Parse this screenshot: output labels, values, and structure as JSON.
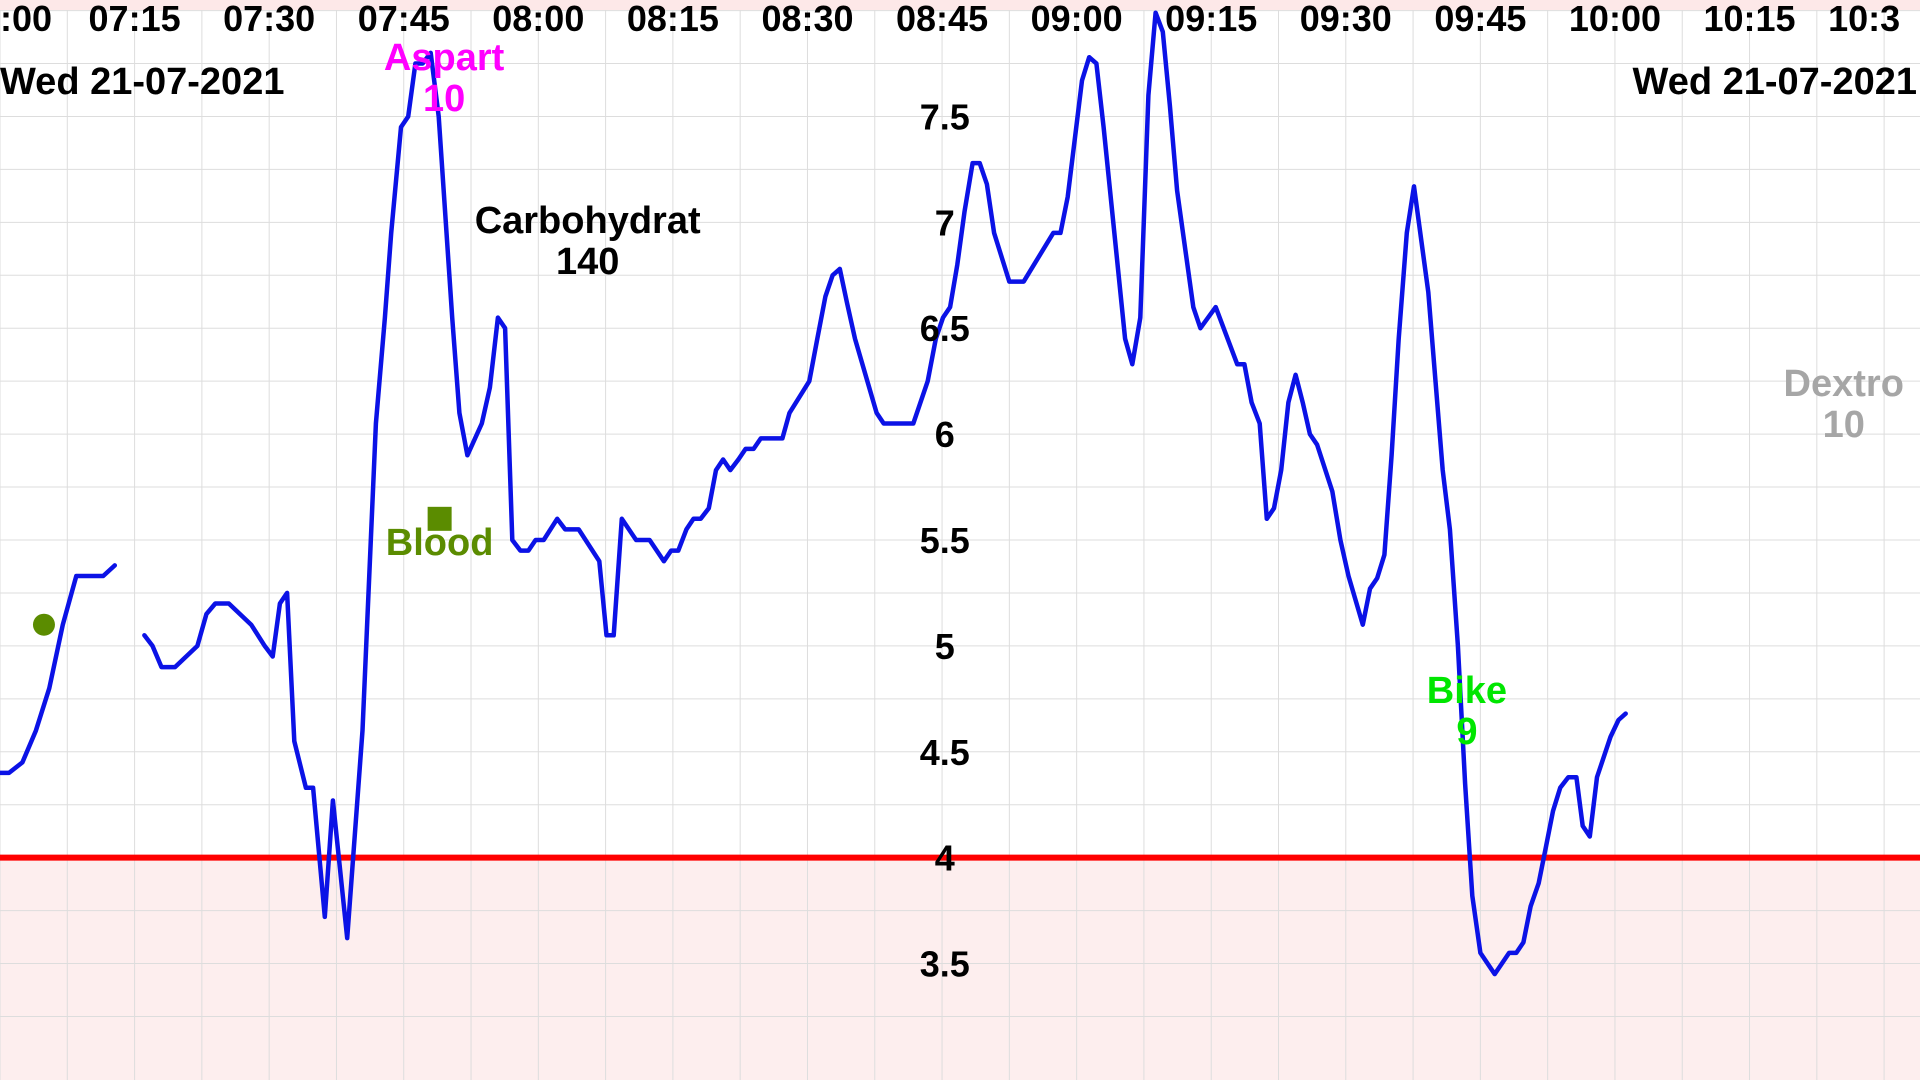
{
  "chart_data": {
    "type": "line",
    "date_left": "Wed 21-07-2021",
    "date_right": "Wed 21-07-2021",
    "x_ticks": [
      ":00",
      "07:15",
      "07:30",
      "07:45",
      "08:00",
      "08:15",
      "08:30",
      "08:45",
      "09:00",
      "09:15",
      "09:30",
      "09:45",
      "10:00",
      "10:15",
      "10:3"
    ],
    "x_tick_minutes": [
      420,
      435,
      450,
      465,
      480,
      495,
      510,
      525,
      540,
      555,
      570,
      585,
      600,
      615,
      630
    ],
    "x_range_minutes": [
      420,
      634
    ],
    "y_ticks": [
      3.5,
      4,
      4.5,
      5,
      5.5,
      6,
      6.5,
      7,
      7.5
    ],
    "y_tick_labels": [
      "3.5",
      "4",
      "4.5",
      "5",
      "5.5",
      "6",
      "6.5",
      "7",
      "7.5"
    ],
    "ylim": [
      2.95,
      8.05
    ],
    "grid": true,
    "low_threshold": 4,
    "colors": {
      "series": "#0b12e6",
      "threshold": "#ff0000",
      "low_region": "#fdeeee",
      "grid": "#dddddd",
      "aspart": "#ff00ff",
      "carbohydrat": "#000000",
      "blood": "#5b8c00",
      "bike": "#00e600",
      "dextro": "#a6a6a6",
      "top_band": "#fde8e8"
    },
    "series": [
      {
        "segments": [
          [
            [
              420,
              4.4
            ],
            [
              421,
              4.4
            ],
            [
              422.5,
              4.45
            ],
            [
              424,
              4.6
            ],
            [
              425.5,
              4.8
            ],
            [
              427,
              5.1
            ],
            [
              428.5,
              5.33
            ],
            [
              430,
              5.33
            ],
            [
              431.5,
              5.33
            ],
            [
              432.8,
              5.38
            ]
          ],
          [
            [
              436.1,
              5.05
            ],
            [
              437,
              5.0
            ],
            [
              438,
              4.9
            ],
            [
              439.5,
              4.9
            ],
            [
              442,
              5.0
            ],
            [
              443,
              5.15
            ],
            [
              444,
              5.2
            ],
            [
              445.5,
              5.2
            ],
            [
              448,
              5.1
            ],
            [
              449.5,
              5.0
            ],
            [
              450.4,
              4.95
            ],
            [
              451.2,
              5.2
            ],
            [
              452,
              5.25
            ],
            [
              452.8,
              4.55
            ],
            [
              454.1,
              4.33
            ],
            [
              454.9,
              4.33
            ],
            [
              456.2,
              3.72
            ],
            [
              457.1,
              4.27
            ],
            [
              458.7,
              3.62
            ],
            [
              460.4,
              4.6
            ],
            [
              461.9,
              6.05
            ],
            [
              462.9,
              6.55
            ],
            [
              463.6,
              6.95
            ],
            [
              464.7,
              7.45
            ],
            [
              465.5,
              7.5
            ],
            [
              466.3,
              7.75
            ],
            [
              467.1,
              7.75
            ],
            [
              468,
              7.8
            ],
            [
              468.9,
              7.5
            ],
            [
              470.4,
              6.55
            ],
            [
              471.2,
              6.1
            ],
            [
              472.1,
              5.9
            ],
            [
              473.7,
              6.05
            ],
            [
              474.6,
              6.22
            ],
            [
              475.5,
              6.55
            ],
            [
              476.3,
              6.5
            ],
            [
              477.1,
              5.5
            ],
            [
              478,
              5.45
            ],
            [
              478.9,
              5.45
            ],
            [
              479.7,
              5.5
            ],
            [
              480.6,
              5.5
            ],
            [
              482.1,
              5.6
            ],
            [
              483,
              5.55
            ],
            [
              484.5,
              5.55
            ],
            [
              486.8,
              5.4
            ],
            [
              487.6,
              5.05
            ],
            [
              488.4,
              5.05
            ],
            [
              489.3,
              5.6
            ],
            [
              490.9,
              5.5
            ],
            [
              492.4,
              5.5
            ],
            [
              494,
              5.4
            ],
            [
              494.8,
              5.45
            ],
            [
              495.6,
              5.45
            ],
            [
              496.5,
              5.55
            ],
            [
              497.3,
              5.6
            ],
            [
              498.1,
              5.6
            ],
            [
              499,
              5.65
            ],
            [
              499.8,
              5.83
            ],
            [
              500.6,
              5.88
            ],
            [
              501.4,
              5.83
            ],
            [
              502.3,
              5.88
            ],
            [
              503.1,
              5.93
            ],
            [
              504,
              5.93
            ],
            [
              504.8,
              5.98
            ],
            [
              507.2,
              5.98
            ],
            [
              508,
              6.1
            ],
            [
              510.2,
              6.25
            ],
            [
              511.1,
              6.45
            ],
            [
              512,
              6.65
            ],
            [
              512.8,
              6.75
            ],
            [
              513.6,
              6.78
            ],
            [
              514.4,
              6.62
            ],
            [
              515.3,
              6.45
            ],
            [
              517.7,
              6.1
            ],
            [
              518.5,
              6.05
            ],
            [
              521.8,
              6.05
            ],
            [
              523.4,
              6.25
            ],
            [
              524.3,
              6.45
            ],
            [
              525.1,
              6.55
            ],
            [
              525.9,
              6.6
            ],
            [
              526.7,
              6.8
            ],
            [
              527.5,
              7.05
            ],
            [
              528.4,
              7.28
            ],
            [
              529.2,
              7.28
            ],
            [
              530,
              7.18
            ],
            [
              530.8,
              6.95
            ],
            [
              532.5,
              6.72
            ],
            [
              534.1,
              6.72
            ],
            [
              537.4,
              6.95
            ],
            [
              538.2,
              6.95
            ],
            [
              539,
              7.12
            ],
            [
              540.6,
              7.67
            ],
            [
              541.4,
              7.78
            ],
            [
              542.2,
              7.75
            ],
            [
              543,
              7.45
            ],
            [
              545.4,
              6.45
            ],
            [
              546.2,
              6.33
            ],
            [
              547.1,
              6.55
            ],
            [
              548,
              7.6
            ],
            [
              548.8,
              7.99
            ],
            [
              549.6,
              7.9
            ],
            [
              550.4,
              7.55
            ],
            [
              551.2,
              7.15
            ],
            [
              553,
              6.6
            ],
            [
              553.8,
              6.5
            ],
            [
              555.5,
              6.6
            ],
            [
              557.9,
              6.33
            ],
            [
              558.7,
              6.33
            ],
            [
              559.5,
              6.15
            ],
            [
              560.4,
              6.05
            ],
            [
              561.2,
              5.6
            ],
            [
              562,
              5.65
            ],
            [
              562.8,
              5.83
            ],
            [
              563.6,
              6.15
            ],
            [
              564.4,
              6.28
            ],
            [
              565.2,
              6.15
            ],
            [
              566,
              6.0
            ],
            [
              566.8,
              5.95
            ],
            [
              568.5,
              5.73
            ],
            [
              569.4,
              5.5
            ],
            [
              570.3,
              5.33
            ],
            [
              571.9,
              5.1
            ],
            [
              572.7,
              5.27
            ],
            [
              573.5,
              5.32
            ],
            [
              574.3,
              5.43
            ],
            [
              575.1,
              5.9
            ],
            [
              575.9,
              6.45
            ],
            [
              576.8,
              6.95
            ],
            [
              577.6,
              7.17
            ],
            [
              579.2,
              6.67
            ],
            [
              580,
              6.25
            ],
            [
              580.8,
              5.83
            ],
            [
              581.6,
              5.55
            ],
            [
              582.5,
              5.0
            ],
            [
              583.3,
              4.35
            ],
            [
              584.1,
              3.82
            ],
            [
              585,
              3.55
            ],
            [
              586.6,
              3.45
            ],
            [
              587.4,
              3.5
            ],
            [
              588.2,
              3.55
            ],
            [
              589,
              3.55
            ],
            [
              589.8,
              3.6
            ],
            [
              590.6,
              3.77
            ],
            [
              591.5,
              3.88
            ],
            [
              592.3,
              4.05
            ],
            [
              593.1,
              4.22
            ],
            [
              593.9,
              4.33
            ],
            [
              594.8,
              4.38
            ],
            [
              595.7,
              4.38
            ],
            [
              596.4,
              4.15
            ],
            [
              597.2,
              4.1
            ],
            [
              598,
              4.38
            ],
            [
              599.5,
              4.57
            ],
            [
              600.4,
              4.65
            ],
            [
              601.2,
              4.68
            ]
          ]
        ]
      }
    ],
    "annotations": [
      {
        "key": "aspart",
        "label": "Aspart",
        "value": "10",
        "x": 469.5,
        "y": 7.72
      },
      {
        "key": "carbohydrat",
        "label": "Carbohydrat",
        "value": "140",
        "x": 485.5,
        "y": 6.95
      },
      {
        "key": "blood",
        "label": "Blood",
        "value": "",
        "x": 469,
        "y": 5.43
      },
      {
        "key": "bike",
        "label": "Bike",
        "value": "9",
        "x": 583.5,
        "y": 4.73
      },
      {
        "key": "dextro",
        "label": "Dextro",
        "value": "10",
        "x": 625.5,
        "y": 6.18
      }
    ],
    "markers": [
      {
        "kind": "circle",
        "key": "blood",
        "x": 424.9,
        "y": 5.1
      },
      {
        "kind": "square",
        "key": "blood",
        "x": 469,
        "y": 5.6
      }
    ]
  }
}
